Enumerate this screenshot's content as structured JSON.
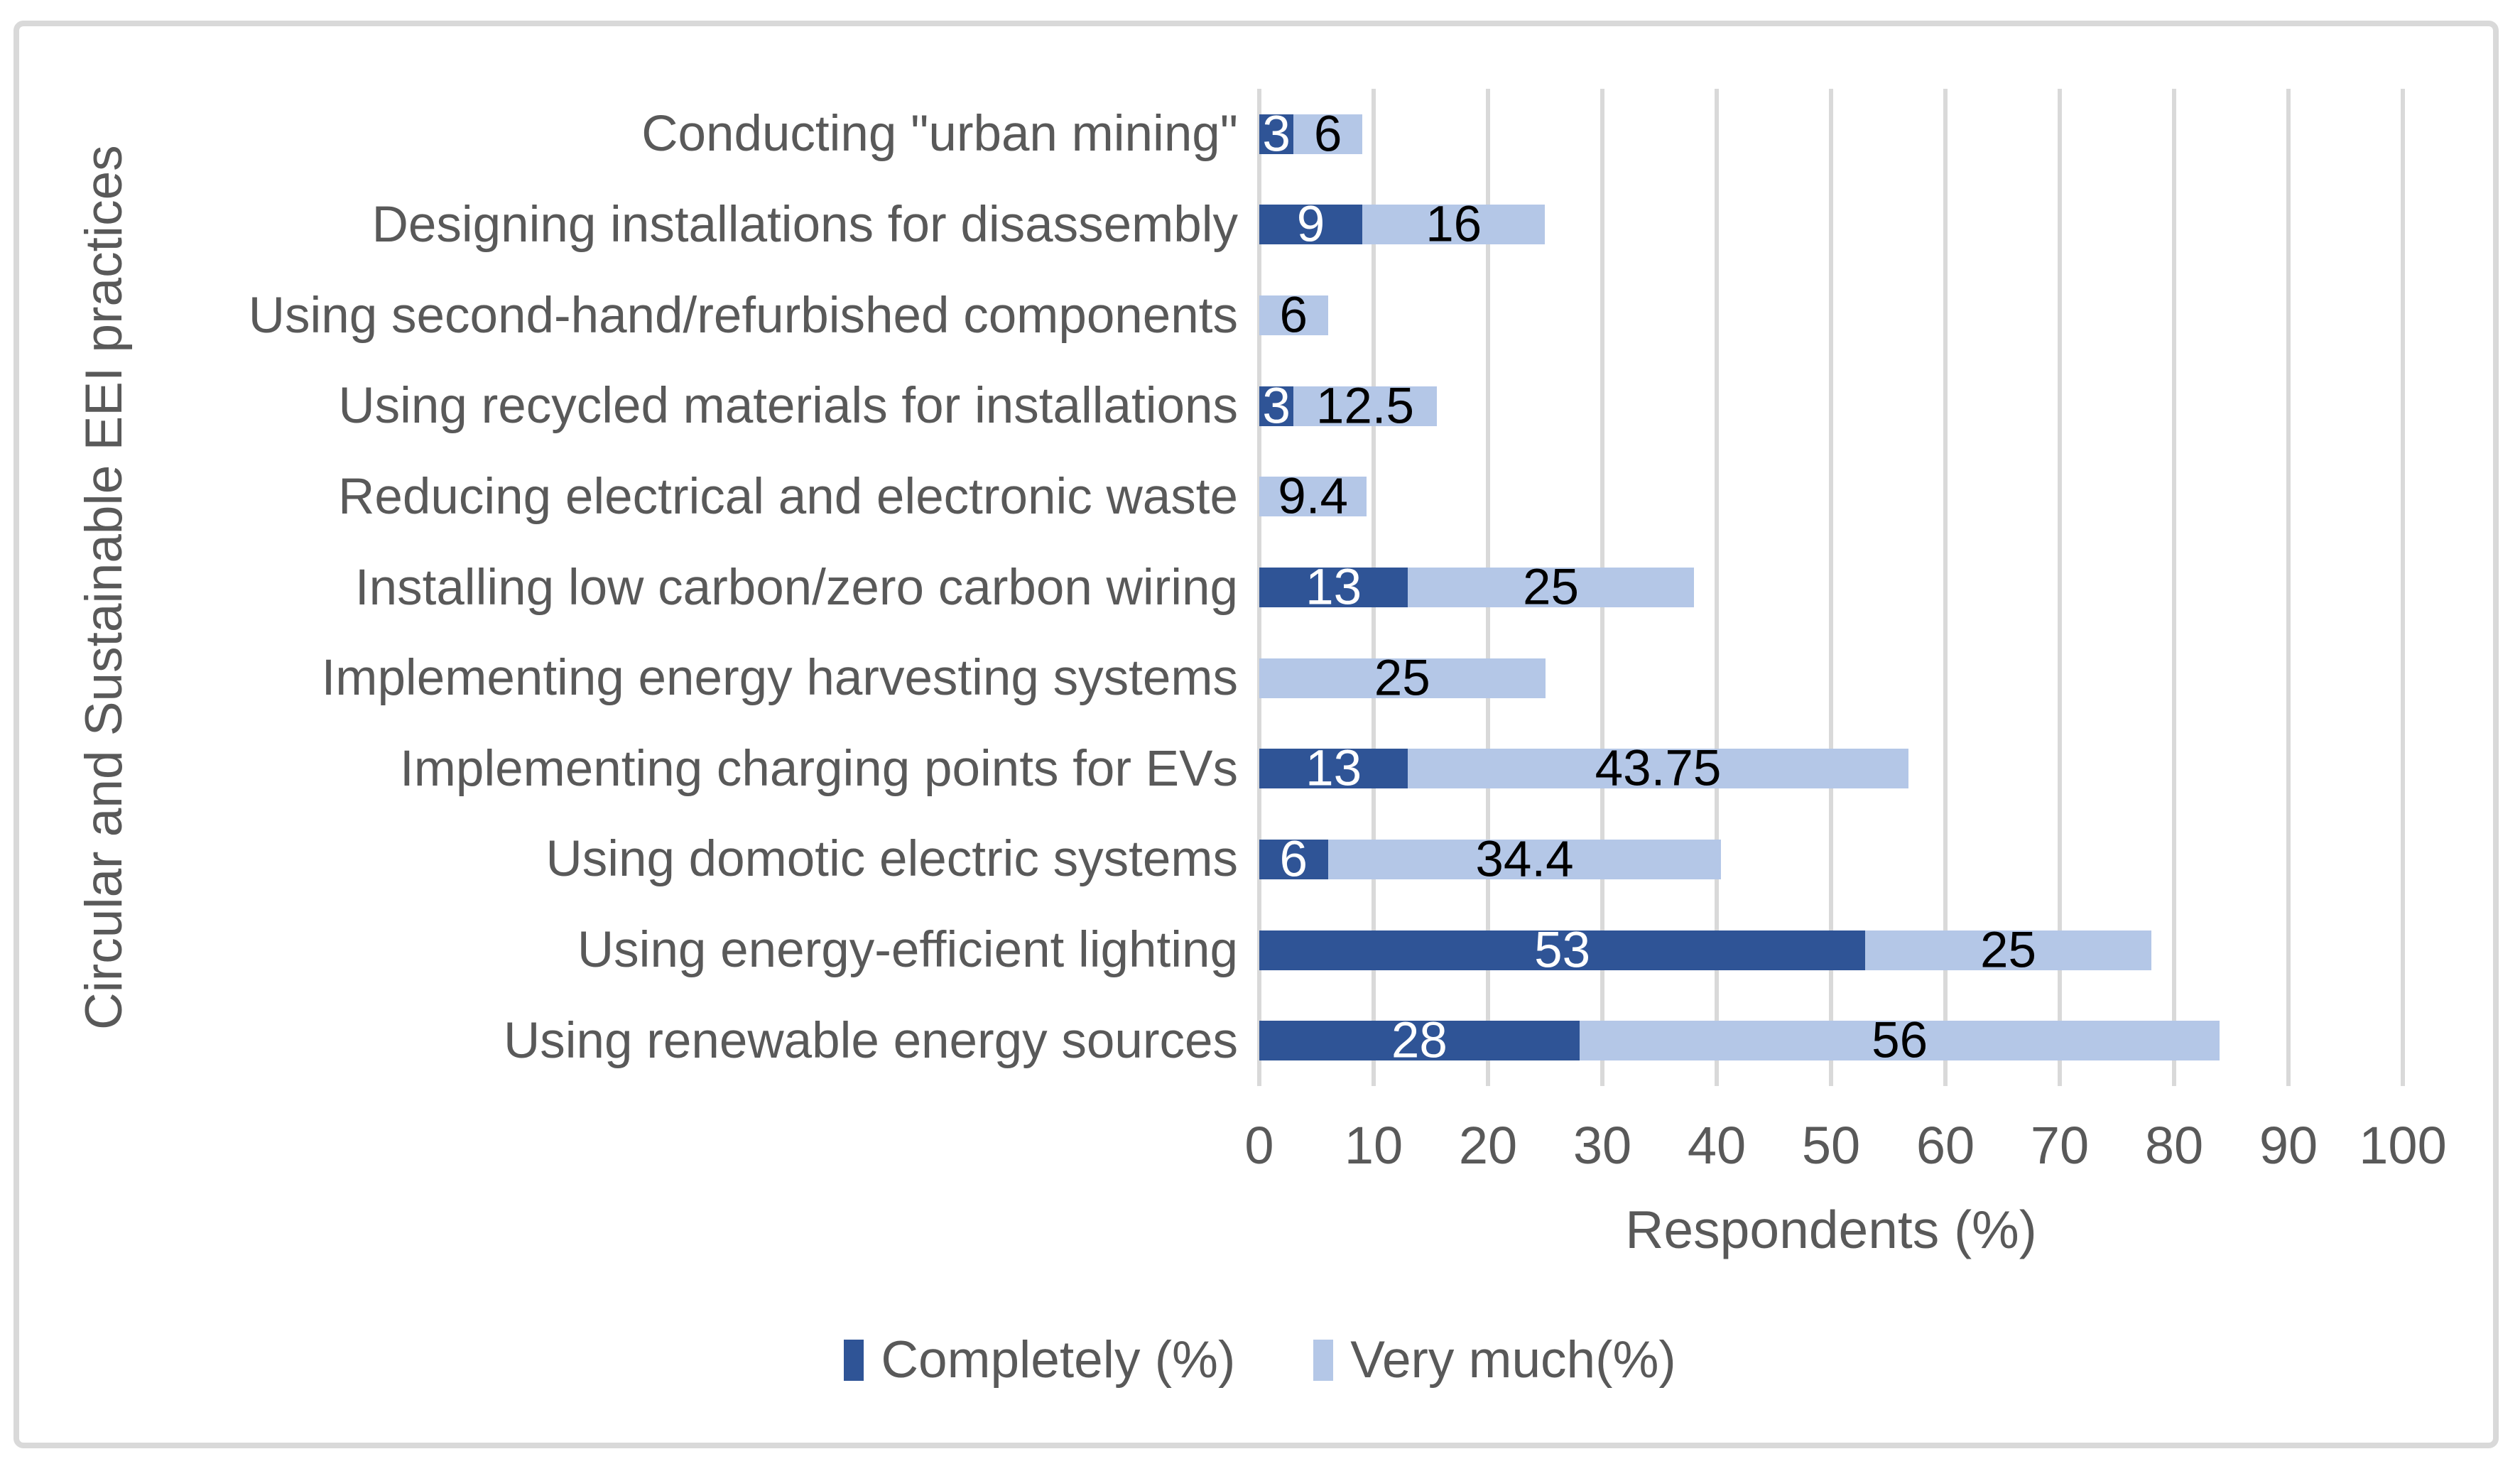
{
  "figure": {
    "border_color": "#D9D9D9",
    "background": "#FFFFFF"
  },
  "chart_data": {
    "type": "bar",
    "orientation": "horizontal",
    "stacked": true,
    "title": "",
    "xlabel": "Respondents (%)",
    "ylabel": "Circular and Sustainable EEI practices",
    "xlim": [
      0,
      100
    ],
    "xticks": [
      0,
      10,
      20,
      30,
      40,
      50,
      60,
      70,
      80,
      90,
      100
    ],
    "grid": "vertical",
    "gridline_color": "#D9D9D9",
    "legend_position": "bottom",
    "categories": [
      "Conducting \"urban mining\"",
      "Designing installations for disassembly",
      "Using second-hand/refurbished components",
      "Using recycled materials for installations",
      "Reducing electrical and electronic waste",
      "Installing low carbon/zero carbon wiring",
      "Implementing energy harvesting systems",
      "Implementing charging points for EVs",
      "Using domotic electric systems",
      "Using energy-efficient lighting",
      "Using renewable energy sources"
    ],
    "series": [
      {
        "name": "Completely (%)",
        "color": "#2F5496",
        "label_color": "#FFFFFF",
        "values": [
          3,
          9,
          0,
          3,
          0,
          13,
          0,
          13,
          6,
          53,
          28
        ]
      },
      {
        "name": "Very much(%)",
        "color": "#B4C7E7",
        "label_color": "#000000",
        "values": [
          6,
          16,
          6,
          12.5,
          9.4,
          25,
          25,
          43.75,
          34.4,
          25,
          56
        ]
      }
    ],
    "value_labels_shown": true,
    "text_color": "#595959"
  }
}
